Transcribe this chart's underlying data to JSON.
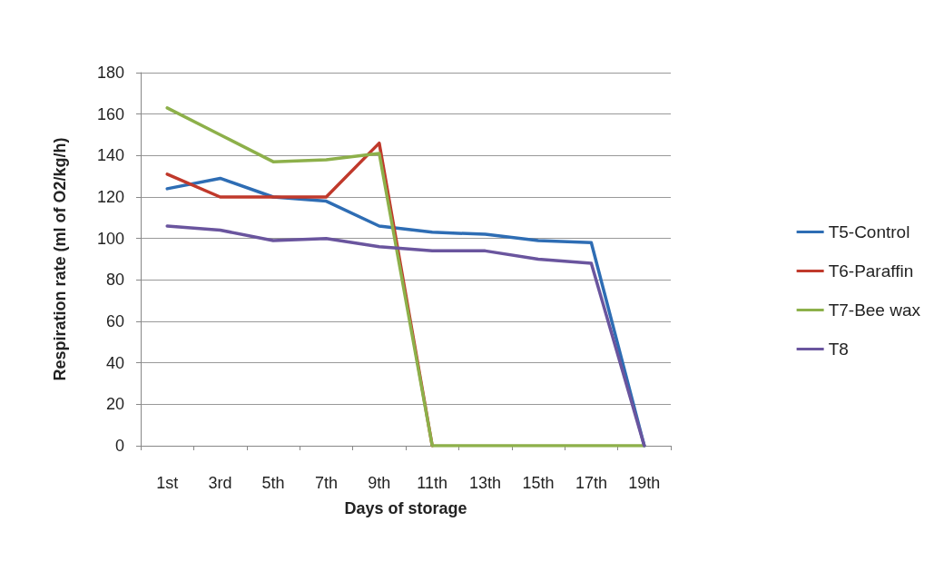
{
  "chart_data": {
    "type": "line",
    "xlabel": "Days of storage",
    "ylabel": "Respiration rate (ml of O2/kg/h)",
    "categories": [
      "1st",
      "3rd",
      "5th",
      "7th",
      "9th",
      "11th",
      "13th",
      "15th",
      "17th",
      "19th"
    ],
    "series": [
      {
        "name": "T5-Control",
        "color": "#2e6db4",
        "values": [
          124,
          129,
          120,
          118,
          106,
          103,
          102,
          99,
          98,
          0
        ]
      },
      {
        "name": "T6-Paraffin",
        "color": "#c0392b",
        "values": [
          131,
          120,
          120,
          120,
          146,
          0,
          null,
          null,
          null,
          null
        ]
      },
      {
        "name": "T7-Bee wax",
        "color": "#8db04a",
        "values": [
          163,
          150,
          137,
          138,
          141,
          0,
          0,
          0,
          0,
          0
        ]
      },
      {
        "name": "T8",
        "color": "#6a559e",
        "values": [
          106,
          104,
          99,
          100,
          96,
          94,
          94,
          90,
          88,
          0
        ]
      }
    ],
    "ylim": [
      0,
      180
    ],
    "yticks": [
      0,
      20,
      40,
      60,
      80,
      100,
      120,
      140,
      160,
      180
    ],
    "grid": "y",
    "legend": "right",
    "marker": "none",
    "line_style": "solid"
  }
}
